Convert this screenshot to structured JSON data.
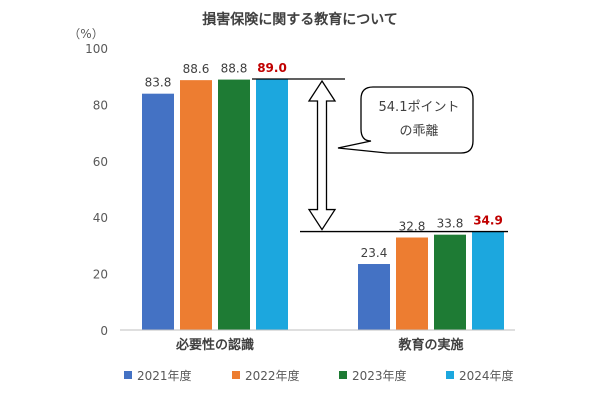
{
  "chart_data": {
    "type": "bar",
    "title": "損害保険に関する教育について",
    "ylabel": "（%）",
    "ylim": [
      0,
      100
    ],
    "yticks": [
      0,
      20,
      40,
      60,
      80,
      100
    ],
    "grid": false,
    "legend_position": "bottom",
    "categories": [
      "必要性の認識",
      "教育の実施"
    ],
    "series": [
      {
        "name": "2021年度",
        "values": [
          83.8,
          23.4
        ],
        "labels": [
          "83.8",
          "23.4"
        ],
        "color": "#4472C4",
        "highlight": false
      },
      {
        "name": "2022年度",
        "values": [
          88.6,
          32.8
        ],
        "labels": [
          "88.6",
          "32.8"
        ],
        "color": "#ED7D31",
        "highlight": false
      },
      {
        "name": "2023年度",
        "values": [
          88.8,
          33.8
        ],
        "labels": [
          "88.8",
          "33.8"
        ],
        "color": "#1E7B34",
        "highlight": false
      },
      {
        "name": "2024年度",
        "values": [
          89.0,
          34.9
        ],
        "labels": [
          "89.0",
          "34.9"
        ],
        "color": "#1CA7DE",
        "highlight": true
      }
    ],
    "highlight_label_color": "#C00000",
    "annotation": {
      "lines": [
        "54.1ポイント",
        "の乖離"
      ],
      "from_value": 89.0,
      "to_value": 34.9
    }
  }
}
